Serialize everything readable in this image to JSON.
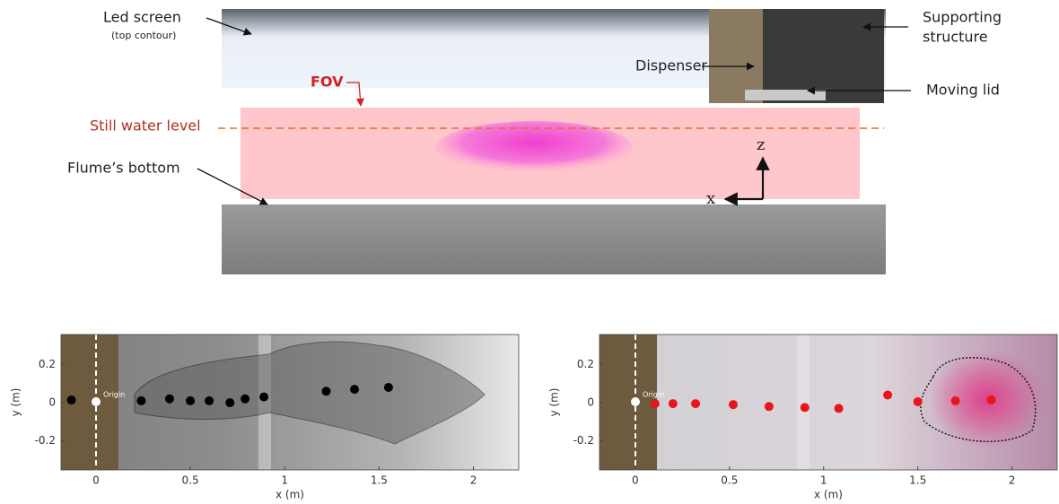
{
  "diagram": {
    "led_screen": "Led screen",
    "led_screen_note": "(top contour)",
    "supporting_structure": [
      "Supporting",
      "structure"
    ],
    "dispenser": "Dispenser",
    "moving_lid": "Moving lid",
    "fov": "FOV",
    "still_water_level": "Still water level",
    "flume_bottom": "Flume’s bottom",
    "axis_z": "z",
    "axis_x": "x"
  },
  "chart_data": [
    {
      "type": "scatter",
      "xlabel": "x (m)",
      "ylabel": "y (m)",
      "origin_label": "Origin",
      "xlim": [
        -0.185,
        2.24
      ],
      "ylim": [
        -0.352,
        0.357
      ],
      "xticks": [
        0,
        0.5,
        1,
        1.5,
        2
      ],
      "yticks": [
        -0.2,
        0,
        0.2
      ],
      "series": [
        {
          "color": "#000000",
          "x": [
            -0.13,
            0.24,
            0.39,
            0.5,
            0.6,
            0.71,
            0.79,
            0.89,
            1.22,
            1.37,
            1.55
          ],
          "values": [
            0.014,
            0.01,
            0.02,
            0.01,
            0.01,
            0.0,
            0.02,
            0.03,
            0.06,
            0.07,
            0.08
          ]
        }
      ]
    },
    {
      "type": "scatter",
      "xlabel": "x (m)",
      "ylabel": "y (m)",
      "origin_label": "Origin",
      "xlim": [
        -0.19,
        2.24
      ],
      "ylim": [
        -0.352,
        0.357
      ],
      "xticks": [
        0,
        0.5,
        1,
        1.5,
        2
      ],
      "yticks": [
        -0.2,
        0,
        0.2
      ],
      "series": [
        {
          "color": "#e8161b",
          "x": [
            0.105,
            0.2,
            0.32,
            0.52,
            0.71,
            0.9,
            1.08,
            1.34,
            1.5,
            1.7,
            1.89
          ],
          "values": [
            -0.005,
            -0.005,
            -0.005,
            -0.01,
            -0.02,
            -0.025,
            -0.03,
            0.04,
            0.005,
            0.01,
            0.015
          ]
        }
      ]
    }
  ]
}
